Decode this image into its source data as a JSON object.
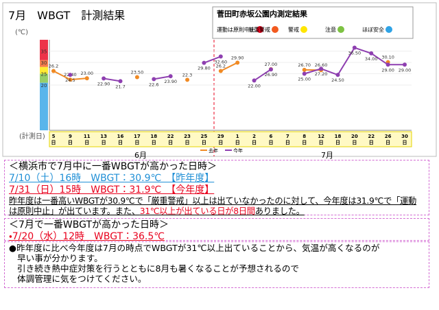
{
  "title": "7月　WBGT　計測結果",
  "legend_box": {
    "title": "菅田町赤坂公園内測定結果",
    "levels": [
      {
        "label": "運動は原則中止",
        "color": "#e8001c"
      },
      {
        "label": "厳重警戒",
        "color": "#f25a1f"
      },
      {
        "label": "警戒",
        "color": "#ffe600"
      },
      {
        "label": "注意",
        "color": "#7dc242"
      },
      {
        "label": "ほぼ安全",
        "color": "#2fa3e6"
      }
    ]
  },
  "chart_data": {
    "type": "line",
    "y_unit": "(℃)",
    "x_unit": "(計測日)",
    "categories": [
      "5日",
      "9日",
      "11日",
      "13日",
      "16日",
      "17日",
      "18日",
      "22日",
      "23日",
      "25日",
      "29日",
      "1日",
      "2日",
      "6日",
      "7日",
      "8日",
      "12日",
      "18日",
      "20日",
      "22日",
      "26日",
      "30日"
    ],
    "months": [
      "6月",
      "7月"
    ],
    "ylim": [
      0,
      40
    ],
    "yticks": [
      20,
      25,
      30,
      35
    ],
    "series": [
      {
        "name": "去年",
        "color": "#f08a24",
        "values": [
          26.2,
          22.4,
          23.0,
          null,
          null,
          23.5,
          null,
          null,
          22.3,
          null,
          26.2,
          29.9,
          null,
          27.0,
          null,
          26.7,
          26.6,
          null,
          null,
          null,
          30.1,
          null
        ],
        "value_labels": [
          "26.2",
          "22.40",
          "23.00",
          null,
          null,
          "23.50",
          null,
          null,
          "22.3",
          null,
          "26.2",
          "29.90",
          null,
          "27.00",
          null,
          "26.70",
          "26.60",
          null,
          null,
          null,
          "30.10",
          null
        ]
      },
      {
        "name": "今年",
        "color": "#8e3fb0",
        "values": [
          null,
          24.5,
          null,
          22.9,
          21.7,
          null,
          22.6,
          23.9,
          null,
          29.8,
          32.6,
          null,
          22.0,
          26.9,
          null,
          25.0,
          27.2,
          24.5,
          36.5,
          34.0,
          29.0,
          29.0
        ],
        "value_labels": [
          null,
          "24.5",
          null,
          "22.90",
          "21.7",
          null,
          "22.6",
          "23.90",
          null,
          "29.80",
          "32.60",
          null,
          "22.00",
          "26.90",
          null,
          "25.00",
          "27.20",
          "24.50",
          "36.50",
          "34.00",
          "29.00",
          "29.00"
        ]
      }
    ]
  },
  "sections": [
    {
      "heading": "＜横浜市で7月中に一番WBGTが高かった日時＞",
      "lines": [
        {
          "text": "7/10（土）16時　WBGT：30.9℃　【昨年度】",
          "color": "#1f8fd6"
        },
        {
          "text": "7/31（日）15時　WBGT：31.9℃　【今年度】",
          "color": "#e8001c"
        }
      ],
      "paragraph": [
        {
          "text": "昨年度は一番高いWBGTが30.9℃で「厳重警戒」以上は出ていなかったのに対して、今年度は31.9℃で「運動は原則中止」が出ています。また、"
        },
        {
          "text": "31℃以上が出ている日が8日間",
          "color": "#e8001c"
        },
        {
          "text": "ありました。"
        }
      ]
    },
    {
      "heading": "＜7月で一番WBGTが高かった日時＞",
      "lines": [
        {
          "text": "・7/20（水）12時　WBGT：36.5℃",
          "color": "#e8001c"
        }
      ]
    },
    {
      "lines": [
        {
          "text": "●昨年度に比べ今年度は7月の時点でWBGTが31℃以上出ていることから、気温が高くなるのが"
        },
        {
          "text": "早い事が分かります。"
        },
        {
          "text": "引き続き熱中症対策を行うとともに8月も暑くなることが予想されるので"
        },
        {
          "text": "体調管理に気をつけてください。"
        }
      ]
    }
  ]
}
